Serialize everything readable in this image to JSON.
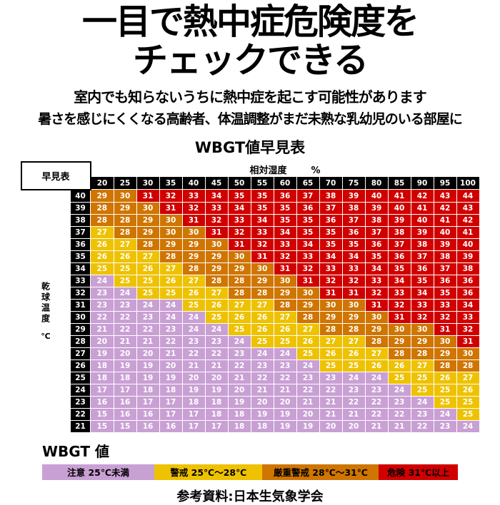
{
  "header": {
    "title_line1": "一目で熱中症危険度を",
    "title_line2": "チェックできる",
    "subtitle1": "室内でも知らないうちに熱中症を起こす可能性があります",
    "subtitle2": "暑さを感じにくくなる高齢者、体温調整がまだ未熟な乳幼児のいる部屋に"
  },
  "footer": {
    "source": "参考資料:日本生気象学会"
  },
  "chart_data": {
    "type": "heatmap",
    "title": "WBGT値早見表",
    "corner_label": "早見表",
    "xlabel": "相対湿度",
    "xunit": "%",
    "ylabel": "乾球温度",
    "yunit": "℃",
    "humidity": [
      20,
      25,
      30,
      35,
      40,
      45,
      50,
      55,
      60,
      65,
      70,
      75,
      80,
      85,
      90,
      95,
      100
    ],
    "temperature": [
      40,
      39,
      38,
      37,
      36,
      35,
      34,
      33,
      32,
      31,
      30,
      29,
      28,
      27,
      26,
      25,
      24,
      23,
      22,
      21
    ],
    "values": [
      [
        29,
        30,
        31,
        32,
        33,
        34,
        35,
        35,
        36,
        37,
        38,
        39,
        40,
        41,
        42,
        43,
        44
      ],
      [
        28,
        29,
        30,
        31,
        32,
        33,
        34,
        35,
        35,
        36,
        37,
        38,
        39,
        40,
        41,
        42,
        43
      ],
      [
        28,
        28,
        29,
        30,
        31,
        32,
        33,
        34,
        35,
        35,
        36,
        37,
        38,
        39,
        40,
        41,
        42
      ],
      [
        27,
        28,
        29,
        30,
        30,
        31,
        32,
        33,
        34,
        35,
        35,
        36,
        37,
        38,
        39,
        40,
        41
      ],
      [
        26,
        27,
        28,
        29,
        29,
        30,
        31,
        32,
        33,
        34,
        35,
        35,
        36,
        37,
        38,
        39,
        40
      ],
      [
        26,
        26,
        27,
        28,
        29,
        29,
        30,
        31,
        32,
        33,
        34,
        34,
        35,
        36,
        37,
        38,
        39
      ],
      [
        25,
        25,
        26,
        27,
        28,
        29,
        29,
        30,
        31,
        32,
        33,
        33,
        34,
        35,
        36,
        37,
        38
      ],
      [
        24,
        25,
        25,
        26,
        27,
        28,
        28,
        29,
        30,
        31,
        32,
        32,
        33,
        34,
        35,
        36,
        36
      ],
      [
        23,
        24,
        25,
        25,
        26,
        27,
        28,
        28,
        29,
        30,
        31,
        31,
        32,
        33,
        34,
        35,
        36
      ],
      [
        23,
        23,
        24,
        24,
        25,
        26,
        27,
        27,
        28,
        29,
        30,
        30,
        31,
        32,
        33,
        33,
        34
      ],
      [
        22,
        22,
        23,
        24,
        24,
        25,
        26,
        26,
        27,
        28,
        29,
        29,
        30,
        31,
        32,
        32,
        33
      ],
      [
        21,
        22,
        22,
        23,
        24,
        24,
        25,
        26,
        26,
        27,
        28,
        28,
        29,
        30,
        30,
        31,
        32
      ],
      [
        20,
        21,
        21,
        22,
        23,
        23,
        24,
        25,
        25,
        26,
        27,
        27,
        28,
        29,
        29,
        30,
        31
      ],
      [
        19,
        20,
        20,
        21,
        22,
        22,
        23,
        24,
        24,
        25,
        26,
        26,
        27,
        28,
        28,
        29,
        30
      ],
      [
        18,
        19,
        19,
        20,
        21,
        21,
        22,
        23,
        23,
        24,
        25,
        25,
        26,
        26,
        27,
        28,
        28
      ],
      [
        18,
        18,
        19,
        19,
        20,
        20,
        21,
        22,
        22,
        23,
        23,
        24,
        24,
        25,
        25,
        26,
        27
      ],
      [
        17,
        17,
        18,
        18,
        19,
        19,
        20,
        21,
        21,
        22,
        22,
        23,
        23,
        24,
        25,
        25,
        26
      ],
      [
        16,
        16,
        17,
        17,
        18,
        18,
        19,
        20,
        20,
        21,
        21,
        22,
        22,
        23,
        24,
        25,
        25
      ],
      [
        15,
        16,
        16,
        17,
        17,
        18,
        18,
        19,
        19,
        20,
        21,
        21,
        22,
        22,
        23,
        24,
        25
      ],
      [
        15,
        15,
        16,
        16,
        17,
        17,
        18,
        18,
        19,
        19,
        20,
        20,
        21,
        21,
        22,
        23,
        24
      ]
    ],
    "legend_title": "WBGT 値",
    "legend": [
      {
        "label": "注意 25℃未満",
        "range_max": 25,
        "color": "#c9a0d4"
      },
      {
        "label": "警戒 25℃〜28℃",
        "range_max": 28,
        "color": "#eec200"
      },
      {
        "label": "厳重警戒 28℃〜31℃",
        "range_max": 31,
        "color": "#cf7500"
      },
      {
        "label": "危険 31℃以上",
        "range_max": 999,
        "color": "#d10000"
      }
    ],
    "colors_meta": {
      "header_bg": "#000000",
      "header_text": "#ffffff",
      "cell_text": "#ffffff"
    }
  }
}
